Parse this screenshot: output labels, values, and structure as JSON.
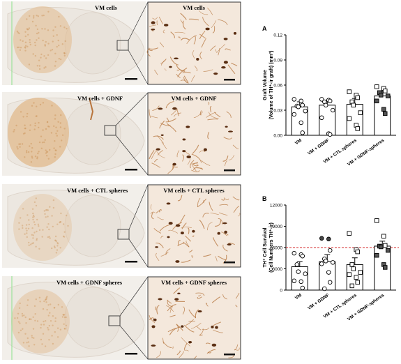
{
  "figure": {
    "panels": [
      {
        "id": "p1",
        "main_label": "VM cells",
        "inset_label": "VM cells"
      },
      {
        "id": "p2",
        "main_label": "VM cells + GDNF",
        "inset_label": "VM cells + GDNF"
      },
      {
        "id": "p3",
        "main_label": "VM cells + CTL spheres",
        "inset_label": "VM cells + CTL spheres"
      },
      {
        "id": "p4",
        "main_label": "VM cells + GDNF spheres",
        "inset_label": "VM cells + GDNF spheres"
      }
    ]
  },
  "chart_data": [
    {
      "panel_letter": "A",
      "type": "bar",
      "ylabel_line1": "Graft Volume",
      "ylabel_line2": "(Volume of TH⁺-ir graft) (mm³)",
      "categories": [
        "VM",
        "VM + GDNF",
        "VM + CTL spheres",
        "VM + GDNF-spheres"
      ],
      "values": [
        0.034,
        0.036,
        0.037,
        0.047
      ],
      "errors": [
        0.006,
        0.005,
        0.007,
        0.006
      ],
      "yticks": [
        "0.00",
        "0.03",
        "0.06",
        "0.09",
        "0.12"
      ],
      "ylim": [
        0,
        0.12
      ],
      "markers": [
        "circle",
        "circle",
        "square",
        "square"
      ],
      "points": [
        [
          0.043,
          0.041,
          0.036,
          0.035,
          0.034,
          0.029,
          0.025,
          0.015,
          0.003
        ],
        [
          0.043,
          0.042,
          0.041,
          0.04,
          0.036,
          0.03,
          0.021,
          0.002,
          0.001
        ],
        [
          0.052,
          0.048,
          0.045,
          0.04,
          0.036,
          0.027,
          0.02,
          0.012,
          0.008
        ],
        [
          0.058,
          0.056,
          0.053,
          0.051,
          0.048,
          0.047,
          0.041,
          0.031,
          0.026
        ]
      ],
      "reference_line": null
    },
    {
      "panel_letter": "B",
      "type": "bar",
      "ylabel_line1": "TH⁺ Cell Survival",
      "ylabel_line2": "(Cell Numbers TH⁺-ir)",
      "categories": [
        "VM",
        "VM + GDNF",
        "VM + CTL spheres",
        "VM + GDNF-spheres"
      ],
      "values": [
        3300,
        4000,
        3600,
        6200
      ],
      "errors": [
        700,
        1000,
        950,
        700
      ],
      "yticks": [
        "0",
        "3000",
        "6000",
        "9000",
        "12000"
      ],
      "ylim": [
        0,
        12000
      ],
      "markers": [
        "circle",
        "circle",
        "square",
        "square"
      ],
      "points": [
        [
          5200,
          5000,
          4800,
          3600,
          2600,
          2300,
          1300,
          1200,
          300
        ],
        [
          7300,
          7200,
          5600,
          4400,
          4100,
          3900,
          3700,
          2500,
          1100,
          200
        ],
        [
          8000,
          5700,
          5400,
          3600,
          3000,
          2500,
          2200,
          1800,
          1100,
          600
        ],
        [
          9800,
          7600,
          6300,
          6200,
          6100,
          5600,
          4900,
          3600,
          3200
        ]
      ],
      "reference_line": 6000
    }
  ]
}
